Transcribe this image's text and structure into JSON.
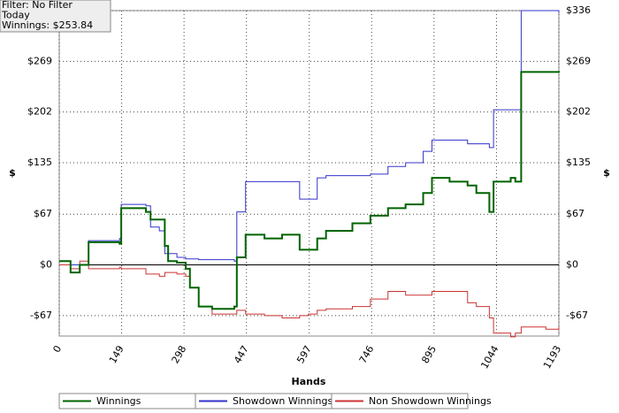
{
  "chart_data": {
    "type": "step",
    "info": [
      "Filter: No Filter",
      "Today",
      "Winnings: $253.84"
    ],
    "xlabel": "Hands",
    "ylabel": "$",
    "y2label": "$",
    "x": [
      0,
      17,
      27,
      49,
      70,
      144,
      148,
      207,
      218,
      239,
      252,
      260,
      281,
      302,
      312,
      333,
      365,
      418,
      424,
      445,
      490,
      532,
      563,
      574,
      595,
      616,
      637,
      700,
      743,
      785,
      827,
      869,
      890,
      932,
      975,
      996,
      1027,
      1037,
      1078,
      1089,
      1103,
      1162,
      1193
    ],
    "series": [
      {
        "name": "Winnings",
        "color": "#006400",
        "values": [
          5,
          5,
          -10,
          0,
          30,
          28,
          75,
          70,
          60,
          60,
          25,
          5,
          3,
          -5,
          -30,
          -55,
          -58,
          -55,
          10,
          40,
          35,
          40,
          40,
          20,
          20,
          35,
          45,
          55,
          65,
          75,
          80,
          95,
          115,
          110,
          105,
          95,
          70,
          110,
          115,
          110,
          255,
          255,
          254
        ]
      },
      {
        "name": "Showdown Winnings",
        "color": "#3333cc",
        "values": [
          5,
          5,
          0,
          0,
          32,
          35,
          80,
          78,
          50,
          45,
          15,
          15,
          10,
          8,
          8,
          7,
          7,
          5,
          70,
          110,
          110,
          110,
          110,
          87,
          87,
          115,
          118,
          118,
          120,
          130,
          135,
          150,
          165,
          165,
          160,
          160,
          155,
          205,
          205,
          205,
          336,
          336,
          333
        ]
      },
      {
        "name": "Non Showdown Winnings",
        "color": "#cc3333",
        "values": [
          0,
          0,
          -5,
          5,
          -5,
          -3,
          -5,
          -12,
          -12,
          -15,
          -10,
          -10,
          -12,
          -15,
          -30,
          -55,
          -65,
          -65,
          -60,
          -65,
          -67,
          -70,
          -70,
          -67,
          -65,
          -60,
          -58,
          -55,
          -45,
          -35,
          -40,
          -40,
          -35,
          -35,
          -50,
          -55,
          -70,
          -90,
          -95,
          -90,
          -82,
          -85,
          -82
        ]
      }
    ],
    "xlim": [
      0,
      1193
    ],
    "xticks": [
      0,
      149,
      298,
      447,
      597,
      746,
      895,
      1044,
      1193
    ],
    "ylim": [
      -94,
      336
    ],
    "yticks": [
      {
        "value": -67,
        "label": "-$67"
      },
      {
        "value": 0,
        "label": "$0"
      },
      {
        "value": 67,
        "label": "$67"
      },
      {
        "value": 135,
        "label": "$135"
      },
      {
        "value": 202,
        "label": "$202"
      },
      {
        "value": 269,
        "label": "$269"
      },
      {
        "value": 336,
        "label": "$336"
      }
    ],
    "grid": true
  }
}
